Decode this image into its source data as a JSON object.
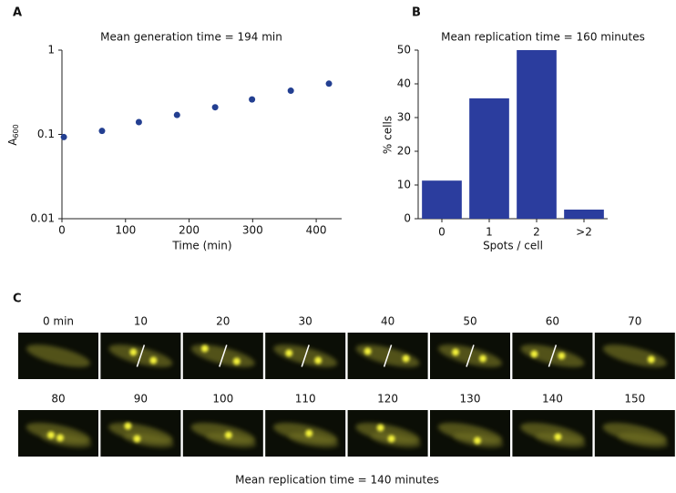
{
  "chart_data": [
    {
      "type": "scatter",
      "panel": "A",
      "title": "Mean generation time = 194 min",
      "xlabel": "Time (min)",
      "ylabel": "A",
      "ylabel_subscript": "600",
      "x": [
        3,
        63,
        121,
        181,
        241,
        299,
        360,
        420
      ],
      "values": [
        0.093,
        0.11,
        0.14,
        0.17,
        0.21,
        0.26,
        0.33,
        0.4
      ],
      "color": "#233f91",
      "xlim": [
        0,
        440
      ],
      "xticks": [
        0,
        100,
        200,
        300,
        400
      ],
      "ylim": [
        0.01,
        1
      ],
      "yticks": [
        0.01,
        0.1,
        1
      ],
      "log_y": true
    },
    {
      "type": "bar",
      "panel": "B",
      "title": "Mean replication time = 160 minutes",
      "xlabel": "Spots / cell",
      "ylabel": "% cells",
      "categories": [
        "0",
        "1",
        "2",
        ">2"
      ],
      "values": [
        11.3,
        35.7,
        50,
        2.7
      ],
      "color": "#2b3d9e",
      "ylim": [
        0,
        50
      ],
      "yticks": [
        0,
        10,
        20,
        30,
        40,
        50
      ]
    }
  ],
  "panel_c": {
    "label": "C",
    "frames": [
      "0 min",
      "10",
      "20",
      "30",
      "40",
      "50",
      "60",
      "70",
      "80",
      "90",
      "100",
      "110",
      "120",
      "130",
      "140",
      "150"
    ],
    "caption": "Mean replication time = 140 minutes"
  }
}
